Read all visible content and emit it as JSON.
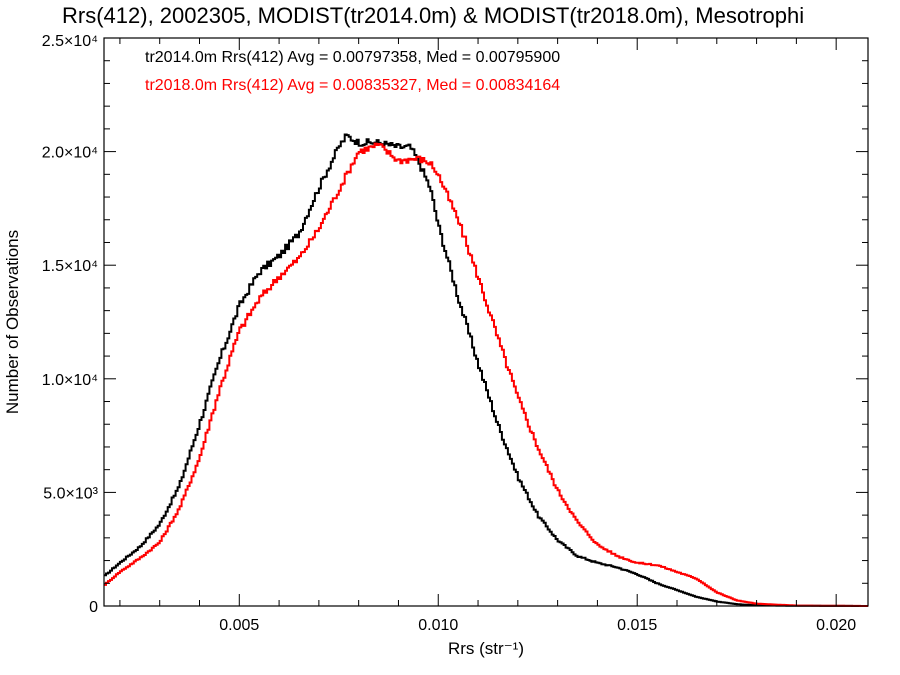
{
  "chart_data": {
    "type": "line",
    "title": "Rrs(412), 2002305, MODIST(tr2014.0m) & MODIST(tr2018.0m), Mesotrophi",
    "xlabel": "Rrs (str⁻¹)",
    "ylabel": "Number of Observations",
    "xlim": [
      0.0016,
      0.0208
    ],
    "ylim": [
      0,
      25000
    ],
    "x_ticks": [
      0.005,
      0.01,
      0.015,
      0.02
    ],
    "x_tick_labels": [
      "0.005",
      "0.010",
      "0.015",
      "0.020"
    ],
    "y_ticks": [
      0,
      5000,
      10000,
      15000,
      20000,
      25000
    ],
    "y_tick_labels": [
      "0",
      "5.0×10³",
      "1.0×10⁴",
      "1.5×10⁴",
      "2.0×10⁴",
      "2.5×10⁴"
    ],
    "grid": false,
    "legend": "top-left",
    "series": [
      {
        "name": "tr2014.0m",
        "legend_text": "tr2014.0m Rrs(412) Avg = 0.00797358, Med = 0.00795900",
        "color": "#000000",
        "points": [
          [
            0.0016,
            1300
          ],
          [
            0.002,
            1900
          ],
          [
            0.0025,
            2600
          ],
          [
            0.003,
            3600
          ],
          [
            0.0035,
            5300
          ],
          [
            0.004,
            8000
          ],
          [
            0.0045,
            10800
          ],
          [
            0.005,
            13200
          ],
          [
            0.0055,
            14700
          ],
          [
            0.006,
            15400
          ],
          [
            0.0065,
            16400
          ],
          [
            0.007,
            18400
          ],
          [
            0.0075,
            20200
          ],
          [
            0.0077,
            20700
          ],
          [
            0.008,
            20400
          ],
          [
            0.0085,
            20400
          ],
          [
            0.009,
            20200
          ],
          [
            0.0093,
            20200
          ],
          [
            0.0095,
            19600
          ],
          [
            0.0098,
            18400
          ],
          [
            0.01,
            16800
          ],
          [
            0.0105,
            13600
          ],
          [
            0.011,
            10700
          ],
          [
            0.0115,
            8000
          ],
          [
            0.012,
            5700
          ],
          [
            0.0125,
            4000
          ],
          [
            0.013,
            2900
          ],
          [
            0.0135,
            2200
          ],
          [
            0.014,
            1900
          ],
          [
            0.0145,
            1700
          ],
          [
            0.015,
            1400
          ],
          [
            0.0155,
            1000
          ],
          [
            0.016,
            700
          ],
          [
            0.0165,
            400
          ],
          [
            0.017,
            200
          ],
          [
            0.0175,
            80
          ],
          [
            0.018,
            30
          ],
          [
            0.019,
            10
          ],
          [
            0.0208,
            0
          ]
        ]
      },
      {
        "name": "tr2018.0m",
        "legend_text": "tr2018.0m Rrs(412) Avg = 0.00835327, Med = 0.00834164",
        "color": "#ff0000",
        "points": [
          [
            0.0016,
            900
          ],
          [
            0.002,
            1500
          ],
          [
            0.0025,
            2100
          ],
          [
            0.003,
            2800
          ],
          [
            0.0035,
            4300
          ],
          [
            0.004,
            6500
          ],
          [
            0.0045,
            9500
          ],
          [
            0.005,
            12100
          ],
          [
            0.0055,
            13500
          ],
          [
            0.006,
            14500
          ],
          [
            0.0065,
            15300
          ],
          [
            0.007,
            16600
          ],
          [
            0.0075,
            18300
          ],
          [
            0.008,
            20000
          ],
          [
            0.0085,
            20300
          ],
          [
            0.009,
            19600
          ],
          [
            0.0095,
            19700
          ],
          [
            0.0098,
            19500
          ],
          [
            0.01,
            19000
          ],
          [
            0.0105,
            17000
          ],
          [
            0.011,
            14500
          ],
          [
            0.0115,
            11800
          ],
          [
            0.012,
            9200
          ],
          [
            0.0125,
            7000
          ],
          [
            0.013,
            5100
          ],
          [
            0.0135,
            3700
          ],
          [
            0.014,
            2700
          ],
          [
            0.0145,
            2200
          ],
          [
            0.015,
            1900
          ],
          [
            0.0155,
            1800
          ],
          [
            0.016,
            1500
          ],
          [
            0.0165,
            1200
          ],
          [
            0.017,
            600
          ],
          [
            0.0175,
            250
          ],
          [
            0.018,
            100
          ],
          [
            0.019,
            20
          ],
          [
            0.0208,
            0
          ]
        ]
      }
    ]
  }
}
